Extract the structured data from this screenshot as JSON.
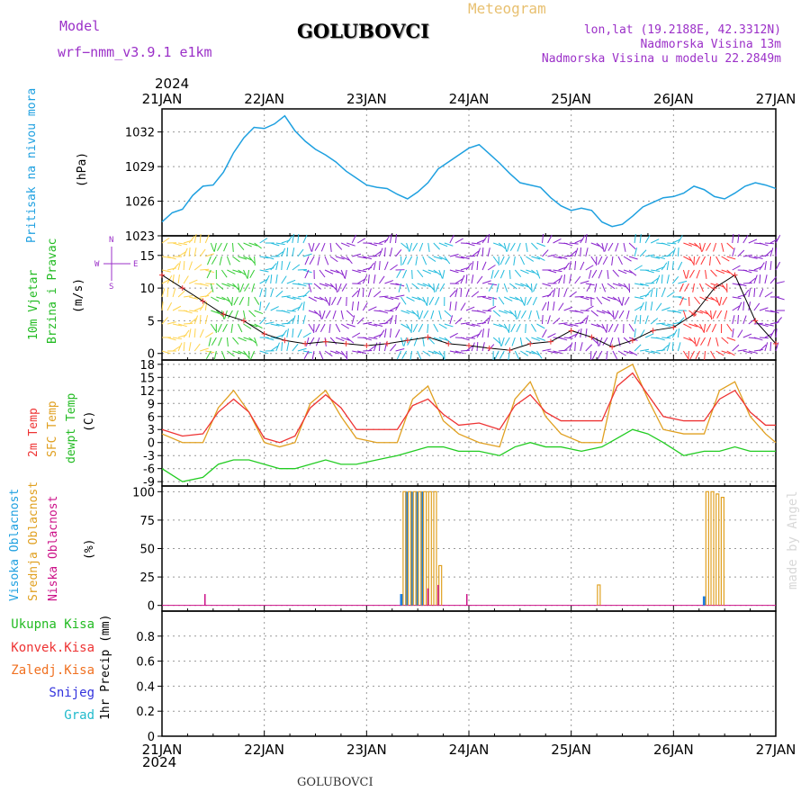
{
  "header": {
    "model_label": "Model",
    "model_name": "wrf−nmm_v3.9.1  e1km",
    "station": "GOLUBOVCI",
    "meteogram": "Meteogram",
    "lonlat": "lon,lat (19.2188E, 42.3312N)",
    "altitude": "Nadmorska Visina 13m",
    "model_altitude": "Nadmorska Visina u modelu 22.2849m"
  },
  "footer": {
    "station": "GOLUBOVCI",
    "credit": "made by Angel"
  },
  "time_axis": {
    "year": "2024",
    "days": [
      "21JAN",
      "22JAN",
      "23JAN",
      "24JAN",
      "25JAN",
      "26JAN",
      "27JAN"
    ]
  },
  "panel_labels": {
    "pressure": [
      "Pritisak na nivou mora",
      "(hPa)"
    ],
    "wind": [
      "10m Vjetar",
      "Brzina i Pravac",
      "(m/s)"
    ],
    "compass": {
      "n": "N",
      "s": "S",
      "w": "W",
      "e": "E"
    },
    "temp": [
      "2m Temp",
      "SFC Temp",
      "dewpt Temp",
      "(C)"
    ],
    "cloud": [
      "Visoka Oblacnost",
      "Srednja Oblacnost",
      "Niska Oblacnost",
      "(%)"
    ],
    "precip": [
      "Ukupna  Kisa",
      "Konvek.Kisa",
      "Zaledj.Kisa",
      "Snijeg",
      "Grad",
      "1hr Precip (mm)"
    ]
  },
  "colors": {
    "pressure": "#1ea0e0",
    "t2m": "#ee3333",
    "tsfc": "#e0a020",
    "dewpt": "#22cc22",
    "high_cloud": "#1e7ee0",
    "mid_cloud": "#e0a020",
    "low_cloud": "#cc1188",
    "total_rain": "#22bb22",
    "conv_rain": "#ee3333",
    "frz_rain": "#f07020",
    "snow": "#3333dd",
    "hail": "#22bbcc",
    "grid": "#999999"
  },
  "chart_data": [
    {
      "type": "line",
      "ylabel": "(hPa)",
      "ylim": [
        1023,
        1034
      ],
      "ticks": [
        1023,
        1026,
        1029,
        1032
      ],
      "series": [
        {
          "name": "Pritisak na nivou mora",
          "x": [
            0,
            0.1,
            0.2,
            0.3,
            0.4,
            0.5,
            0.6,
            0.7,
            0.8,
            0.9,
            1.0,
            1.1,
            1.2,
            1.3,
            1.4,
            1.5,
            1.6,
            1.7,
            1.8,
            1.9,
            2.0,
            2.1,
            2.2,
            2.3,
            2.4,
            2.5,
            2.6,
            2.7,
            2.8,
            2.9,
            3.0,
            3.1,
            3.2,
            3.3,
            3.4,
            3.5,
            3.6,
            3.7,
            3.8,
            3.9,
            4.0,
            4.1,
            4.2,
            4.3,
            4.4,
            4.5,
            4.6,
            4.7,
            4.8,
            4.9,
            5.0,
            5.1,
            5.2,
            5.3,
            5.4,
            5.5,
            5.6,
            5.7,
            5.8,
            5.9,
            6.0
          ],
          "values": [
            1024.2,
            1025,
            1025.3,
            1026.5,
            1027.3,
            1027.4,
            1028.5,
            1030.2,
            1031.5,
            1032.4,
            1032.3,
            1032.7,
            1033.4,
            1032.1,
            1031.2,
            1030.5,
            1030.0,
            1029.4,
            1028.6,
            1028.0,
            1027.4,
            1027.2,
            1027.1,
            1026.6,
            1026.2,
            1026.8,
            1027.6,
            1028.8,
            1029.4,
            1030.0,
            1030.6,
            1030.9,
            1030.1,
            1029.3,
            1028.4,
            1027.6,
            1027.4,
            1027.2,
            1026.3,
            1025.6,
            1025.2,
            1025.4,
            1025.2,
            1024.2,
            1023.8,
            1024.0,
            1024.7,
            1025.5,
            1025.9,
            1026.3,
            1026.4,
            1026.7,
            1027.3,
            1027.0,
            1026.4,
            1026.2,
            1026.7,
            1027.3,
            1027.6,
            1027.4,
            1027.1
          ]
        }
      ]
    },
    {
      "type": "line",
      "ylabel": "(m/s)",
      "ylim": [
        -1,
        18
      ],
      "ticks": [
        0,
        5,
        10,
        15
      ],
      "series": [
        {
          "name": "10m Vjetar",
          "x": [
            0,
            0.2,
            0.4,
            0.6,
            0.8,
            1.0,
            1.2,
            1.4,
            1.6,
            1.8,
            2.0,
            2.2,
            2.4,
            2.6,
            2.8,
            3.0,
            3.2,
            3.4,
            3.6,
            3.8,
            4.0,
            4.2,
            4.4,
            4.6,
            4.8,
            5.0,
            5.2,
            5.4,
            5.6,
            5.8,
            6.0
          ],
          "values": [
            12,
            10,
            8,
            6,
            5,
            3,
            2,
            1.5,
            1.8,
            1.5,
            1.2,
            1.5,
            2.0,
            2.5,
            1.5,
            1.2,
            0.8,
            0.5,
            1.5,
            1.8,
            3.5,
            2.5,
            1.0,
            2.0,
            3.5,
            4.0,
            6.0,
            10.0,
            12.0,
            5.0,
            1.5
          ]
        }
      ]
    },
    {
      "type": "line",
      "ylabel": "(C)",
      "ylim": [
        -10,
        19
      ],
      "ticks": [
        -9,
        -6,
        -3,
        0,
        3,
        6,
        9,
        12,
        15,
        18
      ],
      "series": [
        {
          "name": "2m Temp",
          "x": [
            0,
            0.2,
            0.4,
            0.55,
            0.7,
            0.85,
            1.0,
            1.15,
            1.3,
            1.45,
            1.6,
            1.75,
            1.9,
            2.1,
            2.3,
            2.45,
            2.6,
            2.75,
            2.9,
            3.1,
            3.3,
            3.45,
            3.6,
            3.75,
            3.9,
            4.1,
            4.3,
            4.45,
            4.6,
            4.75,
            4.9,
            5.1,
            5.3,
            5.45,
            5.6,
            5.75,
            5.9,
            6.0
          ],
          "values": [
            3,
            1.5,
            2,
            7,
            10,
            7,
            1,
            0,
            1.5,
            8,
            11,
            8,
            3,
            3,
            3,
            8.5,
            10,
            6.5,
            4,
            4.5,
            3,
            8.5,
            11,
            7,
            5,
            5,
            5,
            13,
            16,
            11,
            6,
            5,
            5,
            10,
            12,
            7,
            4,
            4
          ]
        },
        {
          "name": "SFC Temp",
          "x": [
            0,
            0.2,
            0.4,
            0.55,
            0.7,
            0.85,
            1.0,
            1.15,
            1.3,
            1.45,
            1.6,
            1.75,
            1.9,
            2.1,
            2.3,
            2.45,
            2.6,
            2.75,
            2.9,
            3.1,
            3.3,
            3.45,
            3.6,
            3.75,
            3.9,
            4.1,
            4.3,
            4.45,
            4.6,
            4.75,
            4.9,
            5.1,
            5.3,
            5.45,
            5.6,
            5.75,
            5.9,
            6.0
          ],
          "values": [
            2,
            0,
            0,
            8,
            12,
            7,
            0,
            -1,
            0,
            9,
            12,
            6,
            1,
            0,
            0,
            10,
            13,
            5,
            2,
            0,
            -1,
            10,
            14,
            6,
            2,
            0,
            0,
            16,
            18,
            10,
            3,
            2,
            2,
            12,
            14,
            6,
            2,
            0
          ]
        },
        {
          "name": "dewpt Temp",
          "x": [
            0,
            0.2,
            0.4,
            0.55,
            0.7,
            0.85,
            1.0,
            1.15,
            1.3,
            1.45,
            1.6,
            1.75,
            1.9,
            2.1,
            2.3,
            2.45,
            2.6,
            2.75,
            2.9,
            3.1,
            3.3,
            3.45,
            3.6,
            3.75,
            3.9,
            4.1,
            4.3,
            4.45,
            4.6,
            4.75,
            4.9,
            5.1,
            5.3,
            5.45,
            5.6,
            5.75,
            5.9,
            6.0
          ],
          "values": [
            -6,
            -9,
            -8,
            -5,
            -4,
            -4,
            -5,
            -6,
            -6,
            -5,
            -4,
            -5,
            -5,
            -4,
            -3,
            -2,
            -1,
            -1,
            -2,
            -2,
            -3,
            -1,
            0,
            -1,
            -1,
            -2,
            -1,
            1,
            3,
            2,
            0,
            -3,
            -2,
            -2,
            -1,
            -2,
            -2,
            -2
          ]
        }
      ]
    },
    {
      "type": "bar",
      "ylabel": "(%)",
      "ylim": [
        -5,
        105
      ],
      "ticks": [
        0,
        25,
        50,
        75,
        100
      ],
      "series": [
        {
          "name": "Visoka Oblacnost",
          "x": [
            2.34,
            2.39,
            2.44,
            2.49,
            2.54,
            5.3
          ],
          "values": [
            10,
            100,
            100,
            100,
            100,
            8
          ]
        },
        {
          "name": "Srednja Oblacnost",
          "x": [
            2.37,
            2.42,
            2.47,
            2.52,
            2.57,
            2.62,
            2.67,
            2.72,
            4.27,
            5.33,
            5.38,
            5.43,
            5.48
          ],
          "values": [
            100,
            100,
            100,
            100,
            100,
            100,
            100,
            35,
            18,
            100,
            100,
            98,
            95
          ]
        },
        {
          "name": "Niska Oblacnost",
          "x": [
            0.42,
            2.6,
            2.7,
            2.98
          ],
          "values": [
            10,
            15,
            18,
            10
          ]
        }
      ]
    },
    {
      "type": "bar",
      "ylabel": "1hr Precip (mm)",
      "ylim": [
        0,
        1
      ],
      "ticks": [
        0,
        0.2,
        0.4,
        0.6,
        0.8
      ],
      "series": [
        {
          "name": "Ukupna  Kisa",
          "x": [],
          "values": []
        }
      ]
    }
  ]
}
